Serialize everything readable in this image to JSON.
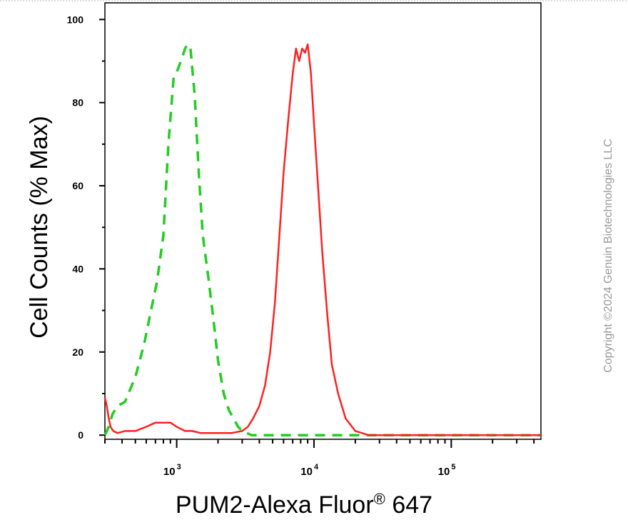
{
  "chart_data": {
    "type": "line",
    "xlabel_main": "PUM2-Alexa Fluor",
    "xlabel_sup": "®",
    "xlabel_tail": " 647",
    "ylabel": "Cell Counts (% Max)",
    "watermark": "Copyright ©2024 Genuin Biotechnologies LLC",
    "xscale": "log",
    "xlim": [
      300,
      450000
    ],
    "ylim": [
      -1,
      104
    ],
    "x_ticks": [
      {
        "value": 1000,
        "base": "10",
        "exp": "3"
      },
      {
        "value": 10000,
        "base": "10",
        "exp": "4"
      },
      {
        "value": 100000,
        "base": "10",
        "exp": "5"
      }
    ],
    "y_ticks": [
      0,
      20,
      40,
      60,
      80,
      100
    ],
    "grid": false,
    "legend": "none",
    "series": [
      {
        "style": "dashed",
        "color": "#22cc22",
        "x": [
          300,
          320,
          340,
          370,
          420,
          500,
          580,
          650,
          720,
          800,
          870,
          950,
          1020,
          1100,
          1150,
          1200,
          1260,
          1350,
          1450,
          1550,
          1700,
          1850,
          2000,
          2200,
          2400,
          2600,
          2800,
          3000,
          3500,
          4000,
          6000,
          10000,
          20000,
          450000
        ],
        "y": [
          0,
          2,
          5,
          7,
          8,
          14,
          22,
          30,
          37,
          48,
          70,
          86,
          88,
          91,
          93,
          94,
          93,
          82,
          63,
          48,
          38,
          28,
          18,
          10,
          6,
          4,
          2,
          1,
          0,
          0,
          0,
          0,
          0,
          0
        ]
      },
      {
        "style": "solid",
        "color": "#ff2020",
        "x": [
          300,
          310,
          320,
          330,
          345,
          370,
          420,
          500,
          600,
          700,
          800,
          900,
          1000,
          1150,
          1300,
          1500,
          1700,
          2000,
          2500,
          3000,
          3300,
          3600,
          4000,
          4400,
          4800,
          5200,
          5600,
          6000,
          6500,
          7000,
          7400,
          7800,
          8200,
          8600,
          9000,
          9500,
          10000,
          10700,
          11500,
          12500,
          13500,
          15000,
          17000,
          20000,
          25000,
          40000,
          100000,
          450000
        ],
        "y": [
          9,
          7,
          4,
          2,
          1,
          0.5,
          1,
          1,
          2,
          3,
          3,
          3,
          2,
          1,
          1,
          0.5,
          0.5,
          0.5,
          0.5,
          1,
          2,
          4,
          7,
          12,
          20,
          32,
          48,
          63,
          76,
          87,
          93,
          90,
          93,
          92,
          94,
          87,
          75,
          60,
          44,
          29,
          17,
          10,
          4,
          1,
          0,
          0,
          0,
          0
        ]
      }
    ]
  }
}
